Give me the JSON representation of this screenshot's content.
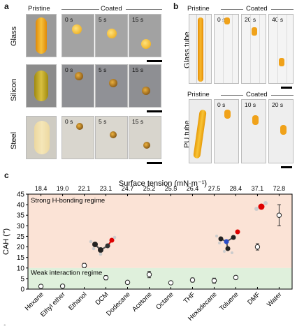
{
  "panel_a": {
    "letter": "a",
    "pristine": "Pristine",
    "coated": "Coated",
    "rows": [
      {
        "label": "Glass",
        "times": [
          "0 s",
          "5 s",
          "15 s"
        ]
      },
      {
        "label": "Silicon",
        "times": [
          "0 s",
          "5 s",
          "15 s"
        ]
      },
      {
        "label": "Steel",
        "times": [
          "0 s",
          "5 s",
          "15 s"
        ]
      }
    ]
  },
  "panel_b": {
    "letter": "b",
    "pristine": "Pristine",
    "coated": "Coated",
    "rows": [
      {
        "label": "Glass tube",
        "times": [
          "0 s",
          "20 s",
          "40 s"
        ]
      },
      {
        "label": "PU tube",
        "times": [
          "0 s",
          "10 s",
          "20 s"
        ]
      }
    ]
  },
  "panel_c": {
    "letter": "c",
    "top_axis_label": "Surface tension (mN·m⁻¹)",
    "y_axis_label": "CAH (°)",
    "region_strong": "Strong H-bonding regime",
    "region_weak": "Weak interaction regime",
    "colors": {
      "strong_region": "#fbe3d6",
      "weak_region": "#dff0dc",
      "drop": "#f2a91a"
    }
  },
  "chart_data": {
    "type": "scatter",
    "categories": [
      "Hexane",
      "Ethyl ether",
      "Ethanol",
      "DCM",
      "Dodecane",
      "Acetone",
      "Octane",
      "THF",
      "Hexadecane",
      "Toluene",
      "DMF",
      "Water"
    ],
    "surface_tension": [
      "18.4",
      "19.0",
      "22.1",
      "23.1",
      "24.7",
      "25.2",
      "25.5",
      "26.4",
      "27.5",
      "28.4",
      "37.1",
      "72.8"
    ],
    "values": [
      1.3,
      1.4,
      11.2,
      5.4,
      3.2,
      6.9,
      3.0,
      4.3,
      4.0,
      5.5,
      20.0,
      35.0
    ],
    "errors": [
      0.5,
      0.5,
      1.0,
      1.0,
      0.4,
      1.5,
      0.4,
      1.0,
      1.2,
      0.8,
      1.5,
      5.0
    ],
    "ylim": [
      0,
      45
    ],
    "yticks": [
      0,
      5,
      10,
      15,
      20,
      25,
      30,
      35,
      40,
      45
    ],
    "strong_regime_from": 10,
    "weak_regime_to": 10,
    "xlabel": "",
    "ylabel": "CAH (°)"
  }
}
